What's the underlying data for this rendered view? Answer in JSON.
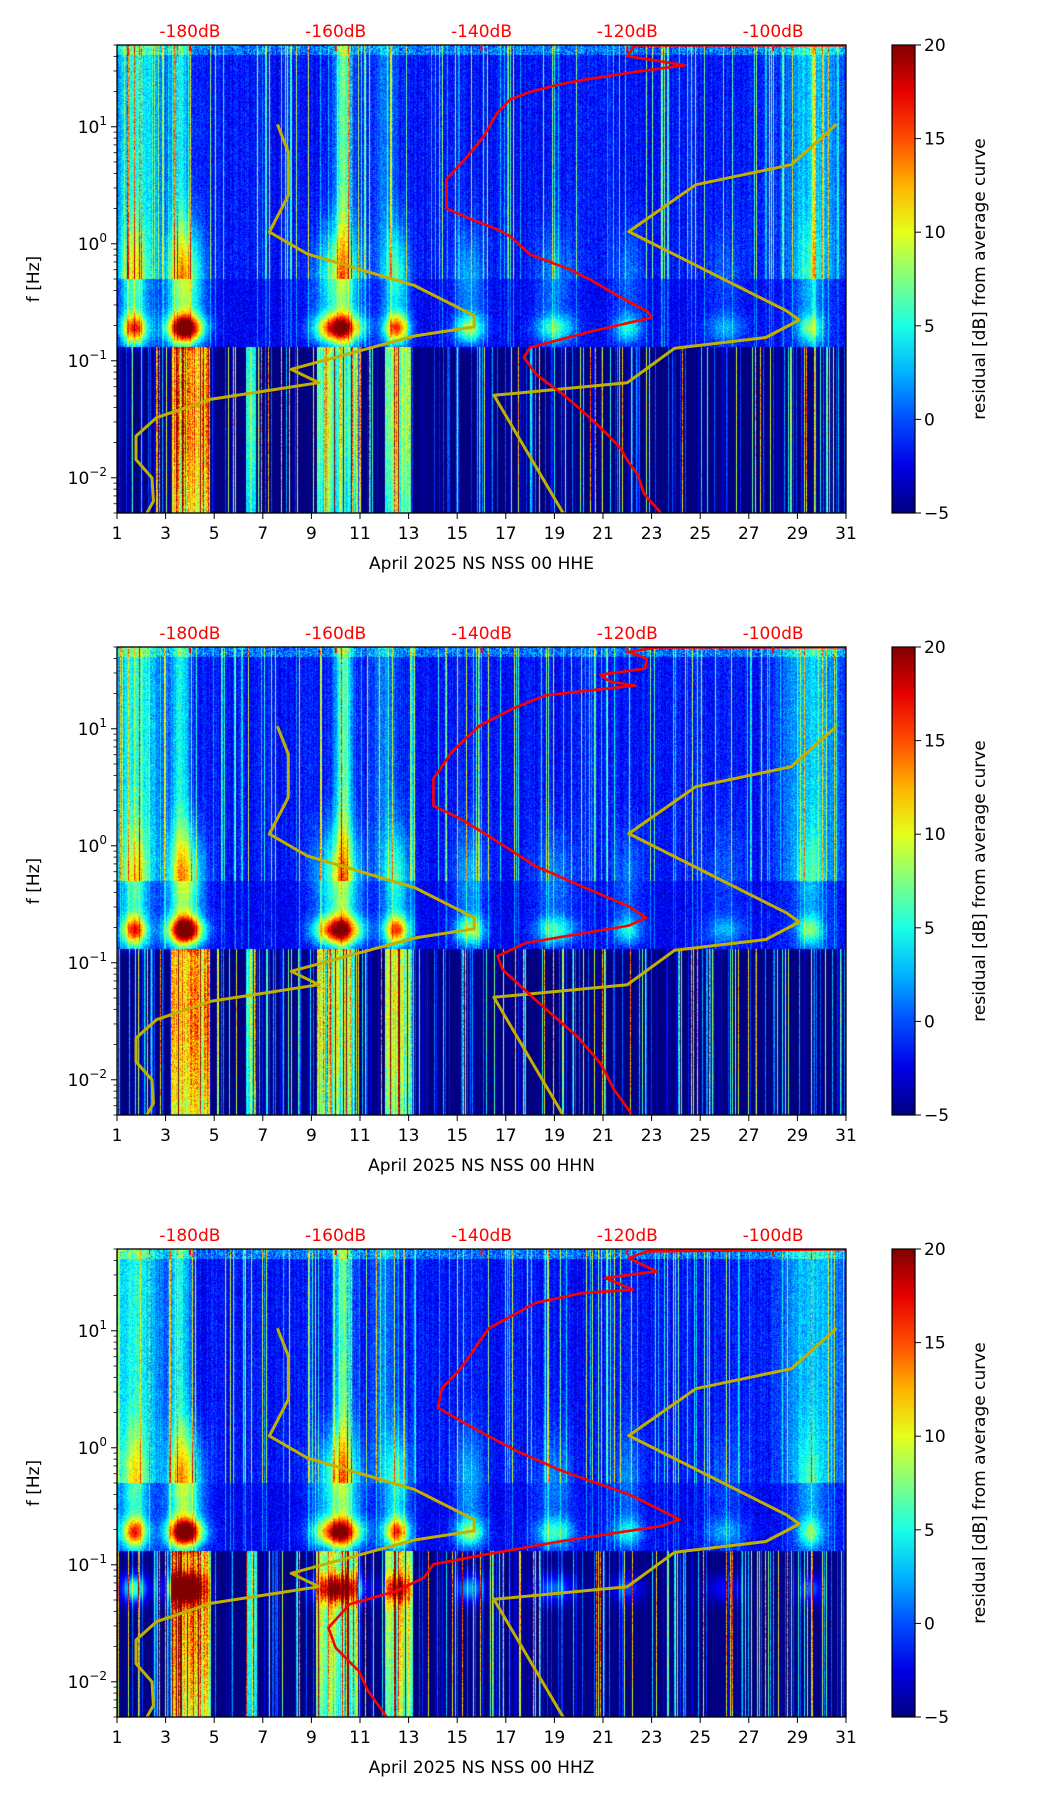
{
  "chart_data": [
    {
      "type": "heatmap",
      "xlabel": "April 2025 NS NSS 00 HHE",
      "ylabel": "f [Hz]",
      "xlim": [
        1,
        31
      ],
      "ylim": [
        0.005,
        50
      ],
      "xticks": [
        "1",
        "3",
        "5",
        "7",
        "9",
        "11",
        "13",
        "15",
        "17",
        "19",
        "21",
        "23",
        "25",
        "27",
        "29",
        "31"
      ],
      "yticks": [
        {
          "base": "10",
          "exp": "1",
          "value": 10
        },
        {
          "base": "10",
          "exp": "0",
          "value": 1
        },
        {
          "base": "10",
          "exp": "−1",
          "value": 0.1
        },
        {
          "base": "10",
          "exp": "−2",
          "value": 0.01
        }
      ],
      "top_axis": {
        "range_db": [
          -190,
          -90
        ],
        "ticks": [
          {
            "label": "-180dB",
            "value": -180
          },
          {
            "label": "-160dB",
            "value": -160
          },
          {
            "label": "-140dB",
            "value": -140
          },
          {
            "label": "-120dB",
            "value": -120
          },
          {
            "label": "-100dB",
            "value": -100
          }
        ],
        "color": "#ff0000"
      },
      "colorbar": {
        "label": "residual [dB] from average curve",
        "range": [
          -5,
          20
        ],
        "ticks": [
          {
            "label": "20",
            "value": 20
          },
          {
            "label": "15",
            "value": 15
          },
          {
            "label": "10",
            "value": 10
          },
          {
            "label": "5",
            "value": 5
          },
          {
            "label": "0",
            "value": 0
          },
          {
            "label": "−5",
            "value": -5
          }
        ],
        "colormap": "jet"
      },
      "red_curve": {
        "color": "#ff0000",
        "points_db_hz": [
          [
            -90,
            49.7
          ],
          [
            -119,
            49.5
          ],
          [
            -120,
            40.2
          ],
          [
            -112.1,
            33.6
          ],
          [
            -119,
            29.4
          ],
          [
            -126,
            25.2
          ],
          [
            -129.6,
            22.8
          ],
          [
            -133.3,
            19.9
          ],
          [
            -136.1,
            17.1
          ],
          [
            -137.9,
            13.0
          ],
          [
            -139.8,
            8.1
          ],
          [
            -142.5,
            5.1
          ],
          [
            -144.8,
            3.58
          ],
          [
            -144.8,
            2.0
          ],
          [
            -141.6,
            1.64
          ],
          [
            -137.5,
            1.3
          ],
          [
            -136.1,
            1.16
          ],
          [
            -133.3,
            0.81
          ],
          [
            -127.8,
            0.6
          ],
          [
            -125,
            0.49
          ],
          [
            -121.3,
            0.36
          ],
          [
            -117.2,
            0.263
          ],
          [
            -116.7,
            0.234
          ],
          [
            -125,
            0.178
          ],
          [
            -133.3,
            0.13
          ],
          [
            -134.2,
            0.107
          ],
          [
            -132.4,
            0.0755
          ],
          [
            -128.7,
            0.051
          ],
          [
            -125,
            0.032
          ],
          [
            -122.7,
            0.0234
          ],
          [
            -120.9,
            0.0178
          ],
          [
            -120,
            0.0141
          ],
          [
            -118.6,
            0.0107
          ],
          [
            -117.7,
            0.0073
          ],
          [
            -115.4,
            0.005
          ]
        ]
      }
    },
    {
      "type": "heatmap",
      "xlabel": "April 2025 NS NSS 00 HHN",
      "ylabel": "f [Hz]",
      "xlim": [
        1,
        31
      ],
      "ylim": [
        0.005,
        50
      ],
      "xticks": [
        "1",
        "3",
        "5",
        "7",
        "9",
        "11",
        "13",
        "15",
        "17",
        "19",
        "21",
        "23",
        "25",
        "27",
        "29",
        "31"
      ],
      "yticks": [
        {
          "base": "10",
          "exp": "1",
          "value": 10
        },
        {
          "base": "10",
          "exp": "0",
          "value": 1
        },
        {
          "base": "10",
          "exp": "−1",
          "value": 0.1
        },
        {
          "base": "10",
          "exp": "−2",
          "value": 0.01
        }
      ],
      "top_axis": {
        "range_db": [
          -190,
          -90
        ],
        "ticks": [
          {
            "label": "-180dB",
            "value": -180
          },
          {
            "label": "-160dB",
            "value": -160
          },
          {
            "label": "-140dB",
            "value": -140
          },
          {
            "label": "-120dB",
            "value": -120
          },
          {
            "label": "-100dB",
            "value": -100
          }
        ],
        "color": "#ff0000"
      },
      "colorbar": {
        "label": "residual [dB] from average curve",
        "range": [
          -5,
          20
        ],
        "ticks": [
          {
            "label": "20",
            "value": 20
          },
          {
            "label": "15",
            "value": 15
          },
          {
            "label": "10",
            "value": 10
          },
          {
            "label": "5",
            "value": 5
          },
          {
            "label": "0",
            "value": 0
          },
          {
            "label": "−5",
            "value": -5
          }
        ],
        "colormap": "jet"
      },
      "red_curve": {
        "color": "#ff0000",
        "points_db_hz": [
          [
            -90,
            49.8
          ],
          [
            -116,
            49.6
          ],
          [
            -119.8,
            45.3
          ],
          [
            -117.3,
            39.7
          ],
          [
            -117.6,
            32.6
          ],
          [
            -123.7,
            29
          ],
          [
            -122.4,
            25.4
          ],
          [
            -118.9,
            23.4
          ],
          [
            -123,
            22
          ],
          [
            -131.3,
            19.3
          ],
          [
            -135.8,
            14.8
          ],
          [
            -140.3,
            10.6
          ],
          [
            -144.1,
            6.3
          ],
          [
            -146.6,
            3.73
          ],
          [
            -146.6,
            2.2
          ],
          [
            -142.8,
            1.69
          ],
          [
            -139,
            1.21
          ],
          [
            -132.6,
            0.67
          ],
          [
            -126.2,
            0.45
          ],
          [
            -119.8,
            0.304
          ],
          [
            -117.4,
            0.243
          ],
          [
            -119.8,
            0.208
          ],
          [
            -133.9,
            0.148
          ],
          [
            -137.8,
            0.114
          ],
          [
            -137.1,
            0.0875
          ],
          [
            -132.6,
            0.0483
          ],
          [
            -126.9,
            0.0235
          ],
          [
            -123.7,
            0.0139
          ],
          [
            -121.8,
            0.0082
          ],
          [
            -119.5,
            0.0052
          ]
        ]
      }
    },
    {
      "type": "heatmap",
      "xlabel": "April 2025 NS NSS 00 HHZ",
      "ylabel": "f [Hz]",
      "xlim": [
        1,
        31
      ],
      "ylim": [
        0.005,
        50
      ],
      "xticks": [
        "1",
        "3",
        "5",
        "7",
        "9",
        "11",
        "13",
        "15",
        "17",
        "19",
        "21",
        "23",
        "25",
        "27",
        "29",
        "31"
      ],
      "yticks": [
        {
          "base": "10",
          "exp": "1",
          "value": 10
        },
        {
          "base": "10",
          "exp": "0",
          "value": 1
        },
        {
          "base": "10",
          "exp": "−1",
          "value": 0.1
        },
        {
          "base": "10",
          "exp": "−2",
          "value": 0.01
        }
      ],
      "top_axis": {
        "range_db": [
          -190,
          -90
        ],
        "ticks": [
          {
            "label": "-180dB",
            "value": -180
          },
          {
            "label": "-160dB",
            "value": -160
          },
          {
            "label": "-140dB",
            "value": -140
          },
          {
            "label": "-120dB",
            "value": -120
          },
          {
            "label": "-100dB",
            "value": -100
          }
        ],
        "color": "#ff0000"
      },
      "colorbar": {
        "label": "residual [dB] from average curve",
        "range": [
          -5,
          20
        ],
        "ticks": [
          {
            "label": "20",
            "value": 20
          },
          {
            "label": "15",
            "value": 15
          },
          {
            "label": "10",
            "value": 10
          },
          {
            "label": "5",
            "value": 5
          },
          {
            "label": "0",
            "value": 0
          },
          {
            "label": "−5",
            "value": -5
          }
        ],
        "colormap": "jet"
      },
      "red_curve": {
        "color": "#ff0000",
        "points_db_hz": [
          [
            -90,
            49.8
          ],
          [
            -117.3,
            47.7
          ],
          [
            -119.8,
            41.9
          ],
          [
            -116,
            32.2
          ],
          [
            -123,
            28.3
          ],
          [
            -119.2,
            22.4
          ],
          [
            -126.2,
            21
          ],
          [
            -132.6,
            17.3
          ],
          [
            -139,
            10.5
          ],
          [
            -142.8,
            4.8
          ],
          [
            -145.4,
            3.24
          ],
          [
            -146,
            2.2
          ],
          [
            -141.5,
            1.52
          ],
          [
            -135.2,
            0.94
          ],
          [
            -128.8,
            0.63
          ],
          [
            -119.8,
            0.4
          ],
          [
            -112.8,
            0.244
          ],
          [
            -115.4,
            0.214
          ],
          [
            -128.8,
            0.16
          ],
          [
            -139.6,
            0.122
          ],
          [
            -146.6,
            0.101
          ],
          [
            -147.9,
            0.0777
          ],
          [
            -151.7,
            0.0596
          ],
          [
            -158.1,
            0.0459
          ],
          [
            -161,
            0.029
          ],
          [
            -160,
            0.0195
          ],
          [
            -156.8,
            0.0123
          ],
          [
            -155.6,
            0.0084
          ],
          [
            -153,
            0.005
          ]
        ]
      }
    }
  ],
  "noise_models": {
    "color": "#c2b000",
    "low_points_db_hz": [
      [
        -168,
        10.5
      ],
      [
        -166.5,
        6.1
      ],
      [
        -166.5,
        2.59
      ],
      [
        -169.1,
        1.26
      ],
      [
        -163.9,
        0.82
      ],
      [
        -149.2,
        0.44
      ],
      [
        -141,
        0.243
      ],
      [
        -141,
        0.195
      ],
      [
        -149.2,
        0.163
      ],
      [
        -166.1,
        0.0846
      ],
      [
        -162.3,
        0.065
      ],
      [
        -177.2,
        0.0468
      ],
      [
        -184.6,
        0.0326
      ],
      [
        -187.4,
        0.0227
      ],
      [
        -187.4,
        0.0143
      ],
      [
        -185.2,
        0.00997
      ],
      [
        -185,
        0.0063
      ],
      [
        -185.9,
        0.005
      ]
    ],
    "high_points_db_hz": [
      [
        -91.3,
        10.5
      ],
      [
        -97.5,
        4.74
      ],
      [
        -110.6,
        3.2
      ],
      [
        -119.8,
        1.27
      ],
      [
        -98.2,
        0.268
      ],
      [
        -96.4,
        0.223
      ],
      [
        -101,
        0.158
      ],
      [
        -113.5,
        0.128
      ],
      [
        -120,
        0.065
      ],
      [
        -138.3,
        0.0507
      ],
      [
        -128.8,
        0.005
      ]
    ]
  }
}
